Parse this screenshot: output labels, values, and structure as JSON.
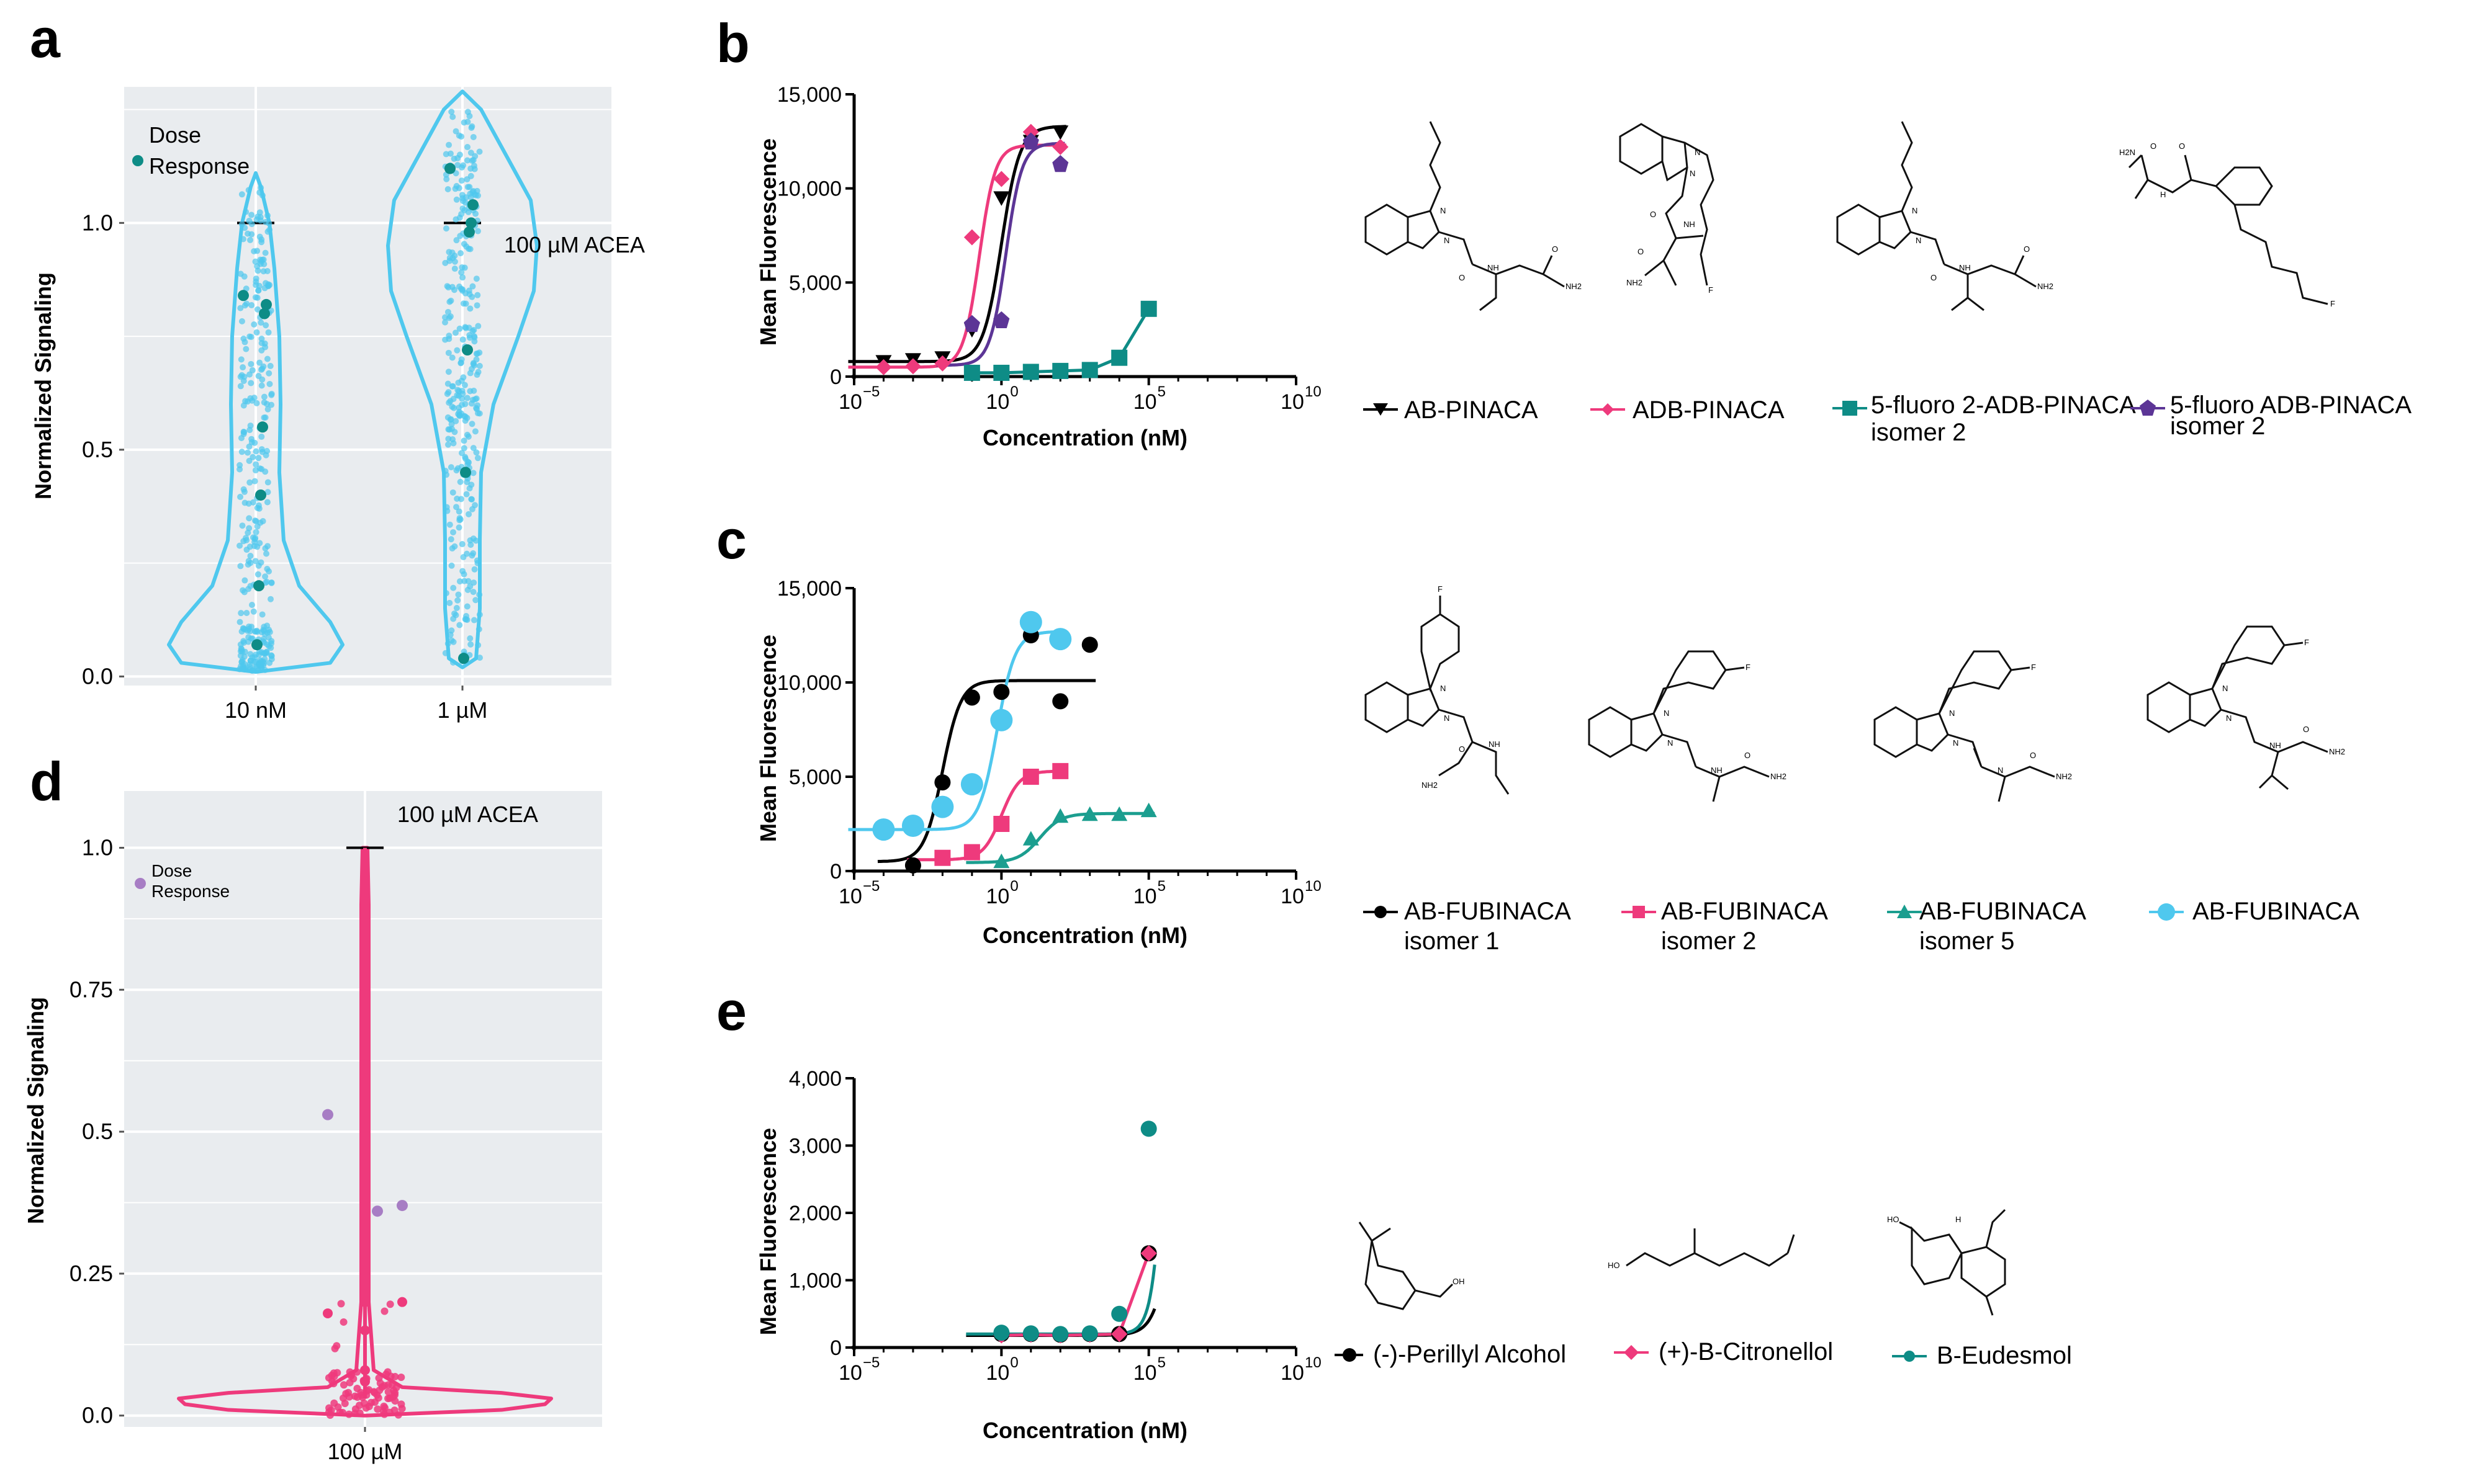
{
  "panel_letters": {
    "a": "a",
    "b": "b",
    "c": "c",
    "d": "d",
    "e": "e"
  },
  "colors": {
    "cyan": "#4FC8EE",
    "teal": "#0E8C86",
    "purple": "#5C3596",
    "pink": "#EE3A7C",
    "black": "#000000",
    "gg_bg": "#E9ECEF",
    "light_purple": "#A77DC4",
    "green_teal": "#1B9E8F"
  },
  "chart_data": [
    {
      "id": "a",
      "type": "scatter",
      "subtype": "violin",
      "title": "",
      "xlabel": "",
      "ylabel": "Normalized Signaling",
      "ylim": [
        -0.02,
        1.3
      ],
      "yticks": [
        "0.0",
        "0.5",
        "1.0"
      ],
      "categories": [
        "10 nM",
        "1 µM"
      ],
      "legend": {
        "label_line1": "Dose",
        "label_line2": "Response",
        "position": "top-left"
      },
      "annotation": "100 µM ACEA",
      "reference_line_value": 1.0,
      "dose_response_points": {
        "10 nM": [
          0.84,
          0.82,
          0.8,
          0.55,
          0.4,
          0.2,
          0.07
        ],
        "1 µM": [
          1.12,
          1.04,
          1.0,
          0.98,
          0.72,
          0.45,
          0.04
        ]
      },
      "grid": true
    },
    {
      "id": "b",
      "type": "line",
      "xlabel": "Concentration (nM)",
      "ylabel": "Mean Fluorescence",
      "xscale": "log",
      "xlim_log10": [
        -5,
        10
      ],
      "ylim": [
        0,
        15000
      ],
      "xtick_labels": [
        "10−5",
        "100",
        "105",
        "1010"
      ],
      "ytick_labels": [
        "0",
        "5,000",
        "10,000",
        "15,000"
      ],
      "series": [
        {
          "name": "AB-PINACA",
          "marker": "triangle-down",
          "color": "#000000",
          "points": [
            [
              -4,
              800
            ],
            [
              -3,
              900
            ],
            [
              -2,
              1000
            ],
            [
              -1,
              2500
            ],
            [
              0,
              9500
            ],
            [
              1,
              12500
            ],
            [
              2,
              13000
            ]
          ],
          "fit": {
            "bottom": 800,
            "top": 13300,
            "logEC50": 0.0,
            "hill": 1.4
          }
        },
        {
          "name": "ADB-PINACA",
          "marker": "diamond",
          "color": "#EE3A7C",
          "points": [
            [
              -4,
              500
            ],
            [
              -3,
              550
            ],
            [
              -2,
              700
            ],
            [
              -1,
              7400
            ],
            [
              0,
              10500
            ],
            [
              1,
              13000
            ],
            [
              2,
              12200
            ]
          ],
          "fit": {
            "bottom": 500,
            "top": 12300,
            "logEC50": -0.75,
            "hill": 1.6
          }
        },
        {
          "name": "5-fluoro 2-ADB-PINACA\nisomer 2",
          "marker": "square",
          "color": "#0E8C86",
          "points": [
            [
              -1,
              200
            ],
            [
              0,
              200
            ],
            [
              1,
              250
            ],
            [
              2,
              300
            ],
            [
              3,
              350
            ],
            [
              4,
              1000
            ],
            [
              5,
              3600
            ]
          ],
          "fit": null
        },
        {
          "name": "5-fluoro ADB-PINACA\nisomer 2",
          "marker": "pentagon",
          "color": "#5C3596",
          "points": [
            [
              -1,
              2800
            ],
            [
              0,
              3000
            ],
            [
              1,
              12500
            ],
            [
              2,
              11300
            ]
          ],
          "fit": {
            "bottom": 600,
            "top": 12400,
            "logEC50": 0.15,
            "hill": 1.6
          }
        }
      ],
      "legend_position": "bottom",
      "grid": false
    },
    {
      "id": "c",
      "type": "line",
      "xlabel": "Concentration (nM)",
      "ylabel": "Mean Fluorescence",
      "xscale": "log",
      "xlim_log10": [
        -5,
        10
      ],
      "ylim": [
        0,
        15000
      ],
      "xtick_labels": [
        "10−5",
        "100",
        "105",
        "1010"
      ],
      "ytick_labels": [
        "0",
        "5,000",
        "10,000",
        "15,000"
      ],
      "series": [
        {
          "name": "AB-FUBINACA\nisomer 1",
          "marker": "circle",
          "color": "#000000",
          "points": [
            [
              -3,
              300
            ],
            [
              -2,
              4700
            ],
            [
              -1,
              9200
            ],
            [
              0,
              9500
            ],
            [
              1,
              12500
            ],
            [
              2,
              9000
            ],
            [
              3,
              12000
            ]
          ],
          "fit": {
            "bottom": 500,
            "top": 10100,
            "logEC50": -2.0,
            "hill": 1.4
          }
        },
        {
          "name": "AB-FUBINACA\nisomer 2",
          "marker": "square",
          "color": "#EE3A7C",
          "points": [
            [
              -2,
              700
            ],
            [
              -1,
              1000
            ],
            [
              0,
              2500
            ],
            [
              1,
              5000
            ],
            [
              2,
              5300
            ]
          ],
          "fit": {
            "bottom": 600,
            "top": 5300,
            "logEC50": 0.0,
            "hill": 1.4
          }
        },
        {
          "name": "AB-FUBINACA\nisomer 5",
          "marker": "triangle-up",
          "color": "#1B9E8F",
          "points": [
            [
              0,
              500
            ],
            [
              1,
              1700
            ],
            [
              2,
              2900
            ],
            [
              3,
              3000
            ],
            [
              4,
              3000
            ],
            [
              5,
              3200
            ]
          ],
          "fit": {
            "bottom": 450,
            "top": 3050,
            "logEC50": 1.3,
            "hill": 1.2
          }
        },
        {
          "name": "AB-FUBINACA",
          "marker": "circle-large",
          "color": "#4FC8EE",
          "points": [
            [
              -4,
              2200
            ],
            [
              -3,
              2400
            ],
            [
              -2,
              3400
            ],
            [
              -1,
              4600
            ],
            [
              0,
              8000
            ],
            [
              1,
              13200
            ],
            [
              2,
              12300
            ]
          ],
          "fit": {
            "bottom": 2200,
            "top": 12700,
            "logEC50": -0.15,
            "hill": 1.4
          }
        }
      ],
      "legend_position": "bottom",
      "grid": false
    },
    {
      "id": "d",
      "type": "scatter",
      "subtype": "violin",
      "xlabel": "",
      "ylabel": "Normalized Signaling",
      "ylim": [
        -0.02,
        1.0
      ],
      "yticks": [
        "0.0",
        "0.25",
        "0.5",
        "0.75",
        "1.0"
      ],
      "categories": [
        "100 µM"
      ],
      "legend": {
        "label_line1": "Dose",
        "label_line2": "Response",
        "position": "top-left"
      },
      "annotation": "100 µM ACEA",
      "reference_line_value": 1.0,
      "dose_response_points": [
        0.53,
        0.36,
        0.37
      ],
      "grid": true
    },
    {
      "id": "e",
      "type": "line",
      "xlabel": "Concentration (nM)",
      "ylabel": "Mean Fluorescence",
      "xscale": "log",
      "xlim_log10": [
        -5,
        10
      ],
      "ylim": [
        0,
        4000
      ],
      "xtick_labels": [
        "10−5",
        "100",
        "105",
        "1010"
      ],
      "ytick_labels": [
        "0",
        "1,000",
        "2,000",
        "3,000",
        "4,000"
      ],
      "series": [
        {
          "name": "(-)-Perillyl Alcohol",
          "marker": "circle",
          "color": "#000000",
          "points": [
            [
              0,
              200
            ],
            [
              1,
              200
            ],
            [
              2,
              190
            ],
            [
              3,
              200
            ],
            [
              4,
              200
            ],
            [
              5,
              1400
            ]
          ],
          "fit": {
            "bottom": 180,
            "top": 20000,
            "logEC50": 6.5,
            "hill": 1.3
          }
        },
        {
          "name": "(+)-B-Citronellol",
          "marker": "diamond",
          "color": "#EE3A7C",
          "points": [
            [
              0,
              180
            ],
            [
              1,
              190
            ],
            [
              2,
              180
            ],
            [
              3,
              190
            ],
            [
              4,
              200
            ],
            [
              5,
              1400
            ]
          ],
          "fit": null
        },
        {
          "name": "B-Eudesmol",
          "marker": "circle",
          "color": "#0E8C86",
          "points": [
            [
              0,
              220
            ],
            [
              1,
              210
            ],
            [
              2,
              200
            ],
            [
              3,
              210
            ],
            [
              4,
              500
            ],
            [
              5,
              3250
            ]
          ],
          "fit": {
            "bottom": 200,
            "top": 20000,
            "logEC50": 5.9,
            "hill": 1.8
          }
        }
      ],
      "legend_position": "bottom",
      "grid": false
    }
  ],
  "legend_b": [
    "AB-PINACA",
    "ADB-PINACA",
    "5-fluoro 2-ADB-PINACA",
    "isomer 2",
    "5-fluoro ADB-PINACA",
    "isomer 2"
  ],
  "legend_c": [
    "AB-FUBINACA",
    "isomer 1",
    "AB-FUBINACA",
    "isomer 2",
    "AB-FUBINACA",
    "isomer 5",
    "AB-FUBINACA"
  ],
  "legend_e": [
    "(-)-Perillyl Alcohol",
    "(+)-B-Citronellol",
    "B-Eudesmol"
  ],
  "molecule_labels": {
    "NH": "NH",
    "N": "N",
    "O": "O",
    "NH2": "NH2",
    "F": "F",
    "HO": "HO",
    "H": "H",
    "H2N": "H2N",
    "OH": "OH"
  }
}
